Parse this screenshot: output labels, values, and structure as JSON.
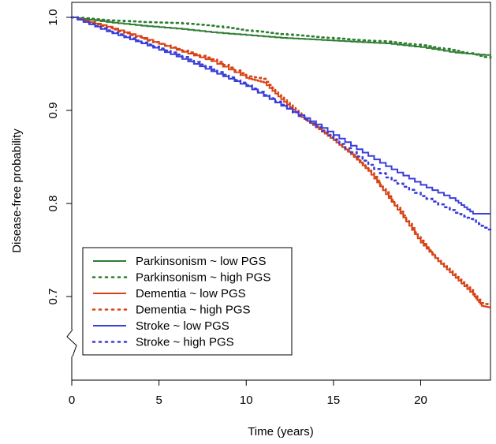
{
  "chart_data": {
    "type": "line",
    "title": "",
    "xlabel": "Time (years)",
    "ylabel": "Disease-free probability",
    "xlim": [
      0,
      24
    ],
    "ylim": [
      0.62,
      1.0
    ],
    "axis_break_on_y": true,
    "grid": false,
    "legend_position": "bottom-left",
    "x_ticks": [
      {
        "value": 0,
        "label": "0"
      },
      {
        "value": 5,
        "label": "5"
      },
      {
        "value": 10,
        "label": "10"
      },
      {
        "value": 15,
        "label": "15"
      },
      {
        "value": 20,
        "label": "20"
      }
    ],
    "y_ticks": [
      {
        "value": 1.0,
        "label": "1.0"
      },
      {
        "value": 0.9,
        "label": "0.9"
      },
      {
        "value": 0.8,
        "label": "0.8"
      },
      {
        "value": 0.7,
        "label": "0.7"
      }
    ],
    "series": [
      {
        "name": "Parkinsonism ~ low PGS",
        "color": "#2e7d32",
        "dash": "solid",
        "x": [
          0,
          2,
          4,
          6,
          8,
          10,
          12,
          14,
          16,
          18,
          20,
          22,
          24
        ],
        "y": [
          1.0,
          0.995,
          0.991,
          0.988,
          0.984,
          0.981,
          0.978,
          0.976,
          0.974,
          0.972,
          0.968,
          0.962,
          0.959
        ]
      },
      {
        "name": "Parkinsonism ~ high PGS",
        "color": "#2e7d32",
        "dash": "dotted",
        "x": [
          0,
          2,
          4,
          6,
          8,
          10,
          12,
          14,
          16,
          18,
          20,
          22,
          24
        ],
        "y": [
          1.0,
          0.997,
          0.995,
          0.994,
          0.991,
          0.986,
          0.982,
          0.979,
          0.976,
          0.974,
          0.97,
          0.964,
          0.956
        ]
      },
      {
        "name": "Dementia ~ low PGS",
        "color": "#d84315",
        "dash": "solid",
        "x": [
          0,
          2,
          4,
          6,
          8,
          10,
          11,
          12,
          13,
          14,
          15,
          16,
          17,
          18,
          19,
          20,
          21,
          22,
          23,
          23.5,
          24
        ],
        "y": [
          1.0,
          0.99,
          0.978,
          0.965,
          0.953,
          0.935,
          0.93,
          0.912,
          0.895,
          0.882,
          0.868,
          0.853,
          0.835,
          0.81,
          0.785,
          0.758,
          0.738,
          0.72,
          0.702,
          0.69,
          0.688
        ]
      },
      {
        "name": "Dementia ~ high PGS",
        "color": "#d84315",
        "dash": "dotted",
        "x": [
          0,
          2,
          4,
          6,
          8,
          10,
          11,
          12,
          13,
          14,
          15,
          16,
          17,
          18,
          19,
          20,
          21,
          22,
          23,
          23.5,
          24
        ],
        "y": [
          1.0,
          0.989,
          0.977,
          0.966,
          0.955,
          0.937,
          0.934,
          0.914,
          0.897,
          0.883,
          0.869,
          0.855,
          0.837,
          0.812,
          0.787,
          0.76,
          0.739,
          0.721,
          0.704,
          0.693,
          0.691
        ]
      },
      {
        "name": "Stroke ~ low PGS",
        "color": "#3a3fd8",
        "dash": "solid",
        "x": [
          0,
          2,
          4,
          6,
          8,
          10,
          12,
          14,
          16,
          18,
          20,
          22,
          23,
          24
        ],
        "y": [
          1.0,
          0.985,
          0.972,
          0.958,
          0.942,
          0.926,
          0.905,
          0.885,
          0.862,
          0.84,
          0.82,
          0.803,
          0.789,
          0.789
        ]
      },
      {
        "name": "Stroke ~ high PGS",
        "color": "#3a3fd8",
        "dash": "dotted",
        "x": [
          0,
          2,
          4,
          6,
          8,
          10,
          12,
          14,
          16,
          18,
          20,
          22,
          23,
          24
        ],
        "y": [
          1.0,
          0.986,
          0.973,
          0.96,
          0.944,
          0.927,
          0.906,
          0.882,
          0.855,
          0.828,
          0.808,
          0.79,
          0.782,
          0.77
        ]
      }
    ]
  }
}
